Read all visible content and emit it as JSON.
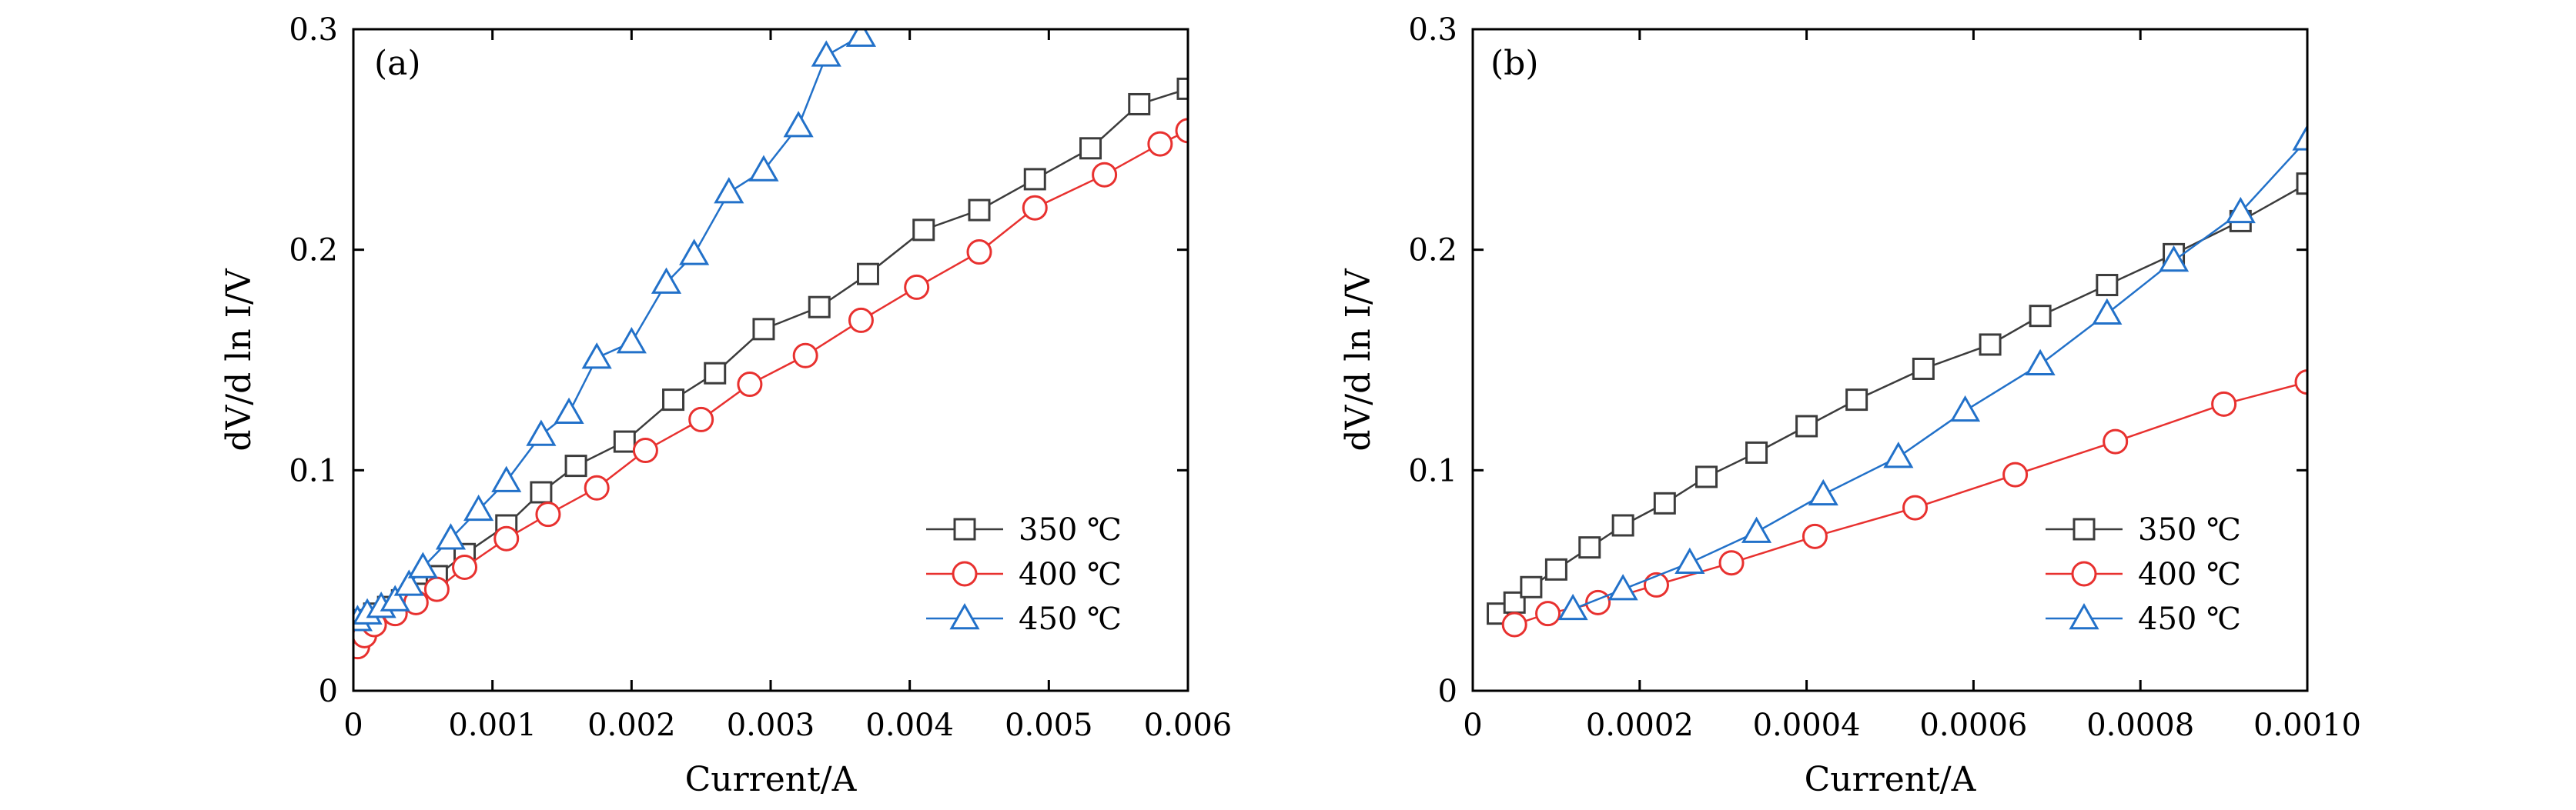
{
  "chart_data": [
    {
      "type": "line",
      "panel_label": "(a)",
      "xlabel": "Current/A",
      "ylabel": "dV/d ln I/V",
      "xlim": [
        0,
        0.006
      ],
      "ylim": [
        0,
        0.3
      ],
      "xticks": [
        0,
        0.001,
        0.002,
        0.003,
        0.004,
        0.005,
        0.006
      ],
      "xtick_labels": [
        "0",
        "0.001",
        "0.002",
        "0.003",
        "0.004",
        "0.005",
        "0.006"
      ],
      "yticks": [
        0,
        0.1,
        0.2,
        0.3
      ],
      "ytick_labels": [
        "0",
        "0.1",
        "0.2",
        "0.3"
      ],
      "grid": false,
      "legend_position": "bottom-right",
      "series": [
        {
          "name": "350 ℃",
          "marker": "square",
          "color": "#3c3c3c",
          "x": [
            3e-05,
            8e-05,
            0.00015,
            0.00025,
            0.00035,
            0.00045,
            0.0006,
            0.0008,
            0.0011,
            0.00135,
            0.0016,
            0.00195,
            0.0023,
            0.0026,
            0.00295,
            0.00335,
            0.0037,
            0.0041,
            0.0045,
            0.0049,
            0.0053,
            0.00565,
            0.006
          ],
          "y": [
            0.03,
            0.032,
            0.035,
            0.038,
            0.041,
            0.044,
            0.052,
            0.062,
            0.075,
            0.09,
            0.102,
            0.113,
            0.132,
            0.144,
            0.164,
            0.174,
            0.189,
            0.209,
            0.218,
            0.232,
            0.246,
            0.266,
            0.273
          ]
        },
        {
          "name": "400 ℃",
          "marker": "circle",
          "color": "#e8312f",
          "x": [
            3e-05,
            8e-05,
            0.00015,
            0.0003,
            0.00045,
            0.0006,
            0.0008,
            0.0011,
            0.0014,
            0.00175,
            0.0021,
            0.0025,
            0.00285,
            0.00325,
            0.00365,
            0.00405,
            0.0045,
            0.0049,
            0.0054,
            0.0058,
            0.006
          ],
          "y": [
            0.02,
            0.025,
            0.03,
            0.035,
            0.04,
            0.046,
            0.056,
            0.069,
            0.08,
            0.092,
            0.109,
            0.123,
            0.139,
            0.152,
            0.168,
            0.183,
            0.199,
            0.219,
            0.234,
            0.248,
            0.254
          ]
        },
        {
          "name": "450 ℃",
          "marker": "triangle",
          "color": "#2271c9",
          "x": [
            3e-05,
            0.0001,
            0.0002,
            0.0003,
            0.0004,
            0.0005,
            0.0007,
            0.0009,
            0.0011,
            0.00135,
            0.00155,
            0.00175,
            0.002,
            0.00225,
            0.00245,
            0.0027,
            0.00295,
            0.0032,
            0.0034,
            0.00365
          ],
          "y": [
            0.032,
            0.035,
            0.038,
            0.041,
            0.048,
            0.056,
            0.069,
            0.082,
            0.095,
            0.116,
            0.126,
            0.151,
            0.158,
            0.185,
            0.198,
            0.226,
            0.236,
            0.256,
            0.288,
            0.297
          ]
        }
      ]
    },
    {
      "type": "line",
      "panel_label": "(b)",
      "xlabel": "Current/A",
      "ylabel": "dV/d ln I/V",
      "xlim": [
        0,
        0.001
      ],
      "ylim": [
        0,
        0.3
      ],
      "xticks": [
        0,
        0.0002,
        0.0004,
        0.0006,
        0.0008,
        0.001
      ],
      "xtick_labels": [
        "0",
        "0.0002",
        "0.0004",
        "0.0006",
        "0.0008",
        "0.0010"
      ],
      "yticks": [
        0,
        0.1,
        0.2,
        0.3
      ],
      "ytick_labels": [
        "0",
        "0.1",
        "0.2",
        "0.3"
      ],
      "grid": false,
      "legend_position": "bottom-right",
      "series": [
        {
          "name": "350 ℃",
          "marker": "square",
          "color": "#3c3c3c",
          "x": [
            3e-05,
            5e-05,
            7e-05,
            0.0001,
            0.00014,
            0.00018,
            0.00023,
            0.00028,
            0.00034,
            0.0004,
            0.00046,
            0.00054,
            0.00062,
            0.00068,
            0.00076,
            0.00084,
            0.00092,
            0.001
          ],
          "y": [
            0.035,
            0.04,
            0.047,
            0.055,
            0.065,
            0.075,
            0.085,
            0.097,
            0.108,
            0.12,
            0.132,
            0.146,
            0.157,
            0.17,
            0.184,
            0.198,
            0.213,
            0.23
          ]
        },
        {
          "name": "400 ℃",
          "marker": "circle",
          "color": "#e8312f",
          "x": [
            5e-05,
            9e-05,
            0.00015,
            0.00022,
            0.00031,
            0.00041,
            0.00053,
            0.00065,
            0.00077,
            0.0009,
            0.001
          ],
          "y": [
            0.03,
            0.035,
            0.04,
            0.048,
            0.058,
            0.07,
            0.083,
            0.098,
            0.113,
            0.13,
            0.14
          ]
        },
        {
          "name": "450 ℃",
          "marker": "triangle",
          "color": "#2271c9",
          "x": [
            0.00012,
            0.00018,
            0.00026,
            0.00034,
            0.00042,
            0.00051,
            0.00059,
            0.00068,
            0.00076,
            0.00084,
            0.00092,
            0.001
          ],
          "y": [
            0.037,
            0.046,
            0.058,
            0.072,
            0.089,
            0.106,
            0.127,
            0.148,
            0.171,
            0.195,
            0.217,
            0.25
          ]
        }
      ]
    }
  ]
}
